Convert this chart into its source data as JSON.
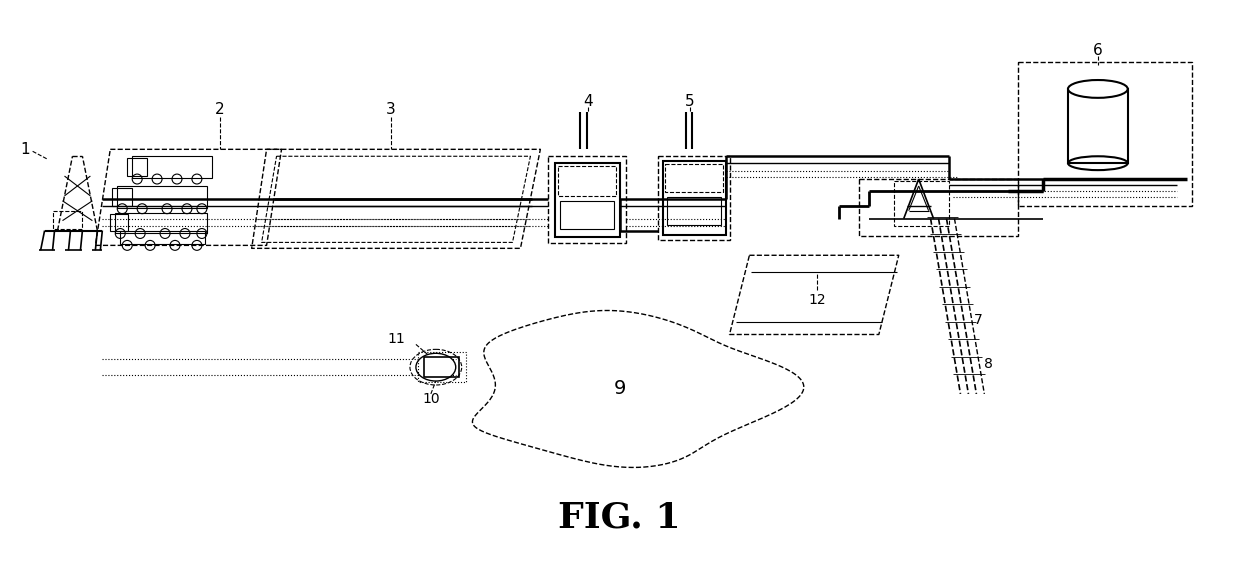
{
  "bg_color": "#ffffff",
  "line_color": "#000000",
  "caption": "FIG. 1",
  "fig_width": 12.39,
  "fig_height": 5.67
}
